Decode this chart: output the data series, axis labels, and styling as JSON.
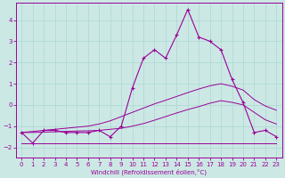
{
  "xlabel": "Windchill (Refroidissement éolien,°C)",
  "bg_color": "#cce8e4",
  "line_color": "#990099",
  "grid_color": "#aad8d4",
  "xlim": [
    -0.5,
    23.5
  ],
  "ylim": [
    -2.5,
    4.8
  ],
  "x_ticks": [
    0,
    1,
    2,
    3,
    4,
    5,
    6,
    7,
    8,
    9,
    10,
    11,
    12,
    13,
    14,
    15,
    16,
    17,
    18,
    19,
    20,
    21,
    22,
    23
  ],
  "y_ticks": [
    -2,
    -1,
    0,
    1,
    2,
    3,
    4
  ],
  "hours": [
    0,
    1,
    2,
    3,
    4,
    5,
    6,
    7,
    8,
    9,
    10,
    11,
    12,
    13,
    14,
    15,
    16,
    17,
    18,
    19,
    20,
    21,
    22,
    23
  ],
  "temp": [
    -1.3,
    -1.8,
    -1.2,
    -1.2,
    -1.3,
    -1.3,
    -1.3,
    -1.2,
    -1.5,
    -1.0,
    0.8,
    2.2,
    2.6,
    2.2,
    3.3,
    4.5,
    3.2,
    3.0,
    2.6,
    1.2,
    0.1,
    -1.3,
    -1.2,
    -1.5
  ],
  "line_upper": [
    -1.3,
    -1.25,
    -1.2,
    -1.15,
    -1.1,
    -1.05,
    -1.0,
    -0.9,
    -0.75,
    -0.55,
    -0.35,
    -0.15,
    0.05,
    0.22,
    0.4,
    0.58,
    0.75,
    0.9,
    1.0,
    0.88,
    0.7,
    0.25,
    -0.05,
    -0.25
  ],
  "line_lower": [
    -1.3,
    -1.3,
    -1.28,
    -1.27,
    -1.25,
    -1.23,
    -1.22,
    -1.2,
    -1.15,
    -1.1,
    -1.0,
    -0.88,
    -0.72,
    -0.55,
    -0.38,
    -0.22,
    -0.08,
    0.08,
    0.2,
    0.12,
    0.0,
    -0.35,
    -0.7,
    -0.9
  ],
  "flat": [
    -1.8,
    -1.8,
    -1.8,
    -1.8,
    -1.8,
    -1.8,
    -1.8,
    -1.8,
    -1.8,
    -1.8,
    -1.8,
    -1.8,
    -1.8,
    -1.8,
    -1.8,
    -1.8,
    -1.8,
    -1.8,
    -1.8,
    -1.8,
    -1.8,
    -1.8,
    -1.8,
    -1.8
  ]
}
